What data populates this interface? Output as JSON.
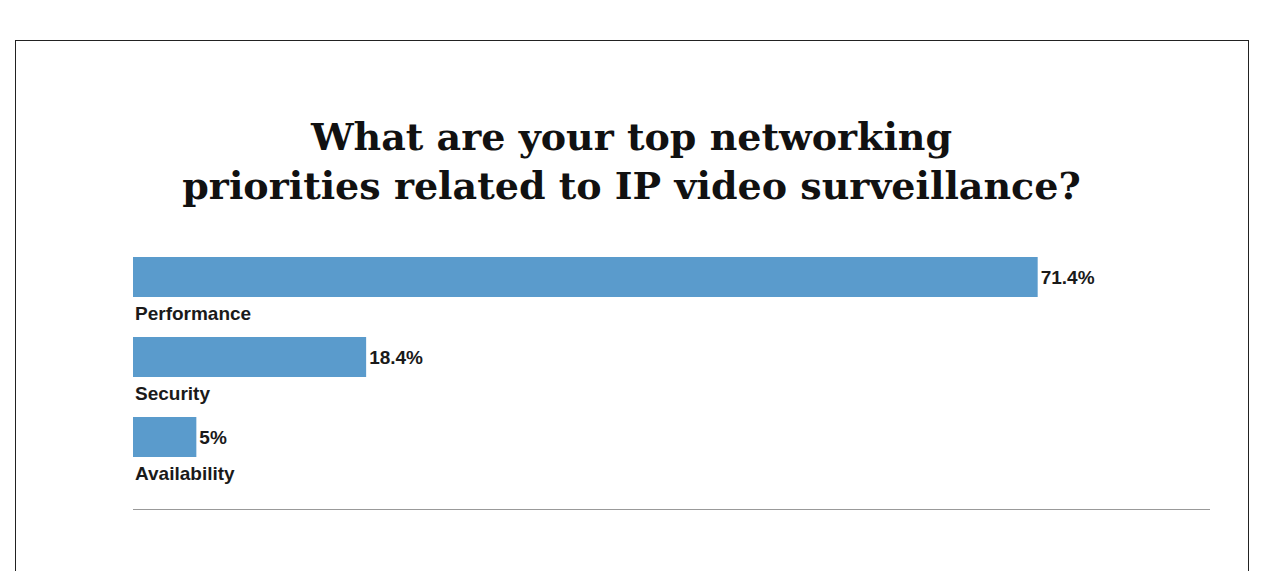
{
  "chart_data": {
    "type": "bar",
    "orientation": "horizontal",
    "title": "What are your top networking\npriorities related to IP video surveillance?",
    "subtitle": "to IP Video Surveillance",
    "categories": [
      "Performance",
      "Security",
      "Availability"
    ],
    "values": [
      71.4,
      18.4,
      5
    ],
    "value_labels": [
      "71.4%",
      "18.4%",
      "5%"
    ],
    "data_labels": true,
    "color": "#5a9bcc",
    "xlim": [
      0,
      85
    ],
    "xticks": [],
    "tick_labels": false,
    "grid": false
  }
}
